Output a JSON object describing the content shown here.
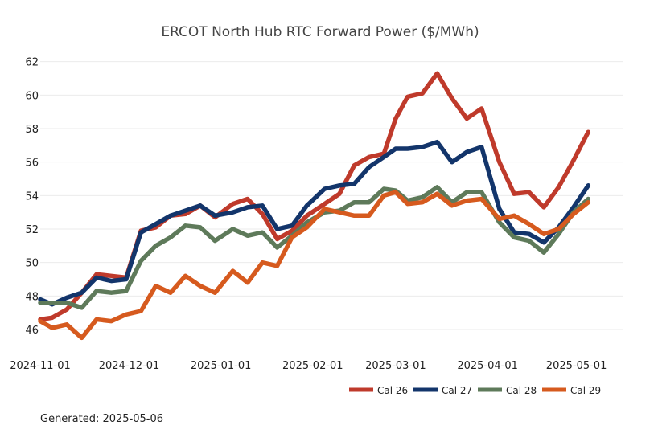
{
  "chart_data": {
    "type": "line",
    "title": "ERCOT North Hub RTC Forward Power ($/MWh)",
    "xlabel": "",
    "ylabel": "",
    "x_start": "2024-11-01",
    "x_end": "2025-05-06",
    "ylim": [
      44.8,
      62.8
    ],
    "y_ticks": [
      46,
      48,
      50,
      52,
      54,
      56,
      58,
      60,
      62
    ],
    "x_ticks": [
      "2024-11-01",
      "2024-12-01",
      "2025-01-01",
      "2025-02-01",
      "2025-03-01",
      "2025-04-01",
      "2025-05-01"
    ],
    "grid": true,
    "legend_position": "bottom-right",
    "dates": [
      "2024-11-01",
      "2024-11-05",
      "2024-11-10",
      "2024-11-15",
      "2024-11-20",
      "2024-11-25",
      "2024-11-30",
      "2024-12-05",
      "2024-12-10",
      "2024-12-15",
      "2024-12-20",
      "2024-12-25",
      "2024-12-30",
      "2025-01-05",
      "2025-01-10",
      "2025-01-15",
      "2025-01-20",
      "2025-01-25",
      "2025-01-30",
      "2025-02-05",
      "2025-02-10",
      "2025-02-15",
      "2025-02-20",
      "2025-02-25",
      "2025-03-01",
      "2025-03-05",
      "2025-03-10",
      "2025-03-15",
      "2025-03-20",
      "2025-03-25",
      "2025-03-30",
      "2025-04-05",
      "2025-04-10",
      "2025-04-15",
      "2025-04-20",
      "2025-04-25",
      "2025-04-30",
      "2025-05-05"
    ],
    "series": [
      {
        "name": "Cal 26",
        "color": "#bf3a2b",
        "values": [
          46.6,
          46.7,
          47.2,
          48.2,
          49.3,
          49.2,
          49.1,
          51.9,
          52.1,
          52.8,
          52.9,
          53.4,
          52.7,
          53.5,
          53.8,
          52.9,
          51.4,
          51.9,
          52.8,
          53.5,
          54.1,
          55.8,
          56.3,
          56.5,
          58.6,
          59.9,
          60.1,
          61.3,
          59.8,
          58.6,
          59.2,
          56.0,
          54.1,
          54.2,
          53.3,
          54.5,
          56.1,
          57.8
        ]
      },
      {
        "name": "Cal 27",
        "color": "#13356b",
        "values": [
          47.8,
          47.5,
          47.9,
          48.2,
          49.1,
          48.9,
          49.0,
          51.8,
          52.3,
          52.8,
          53.1,
          53.4,
          52.8,
          53.0,
          53.3,
          53.4,
          52.0,
          52.2,
          53.4,
          54.4,
          54.6,
          54.7,
          55.7,
          56.3,
          56.8,
          56.8,
          56.9,
          57.2,
          56.0,
          56.6,
          56.9,
          53.2,
          51.8,
          51.7,
          51.2,
          52.1,
          53.3,
          54.6
        ]
      },
      {
        "name": "Cal 28",
        "color": "#5e7a5a",
        "values": [
          47.6,
          47.6,
          47.6,
          47.3,
          48.3,
          48.2,
          48.3,
          50.1,
          51.0,
          51.5,
          52.2,
          52.1,
          51.3,
          52.0,
          51.6,
          51.8,
          50.9,
          51.6,
          52.4,
          53.0,
          53.1,
          53.6,
          53.6,
          54.4,
          54.3,
          53.7,
          53.9,
          54.5,
          53.6,
          54.2,
          54.2,
          52.4,
          51.5,
          51.3,
          50.6,
          51.7,
          53.0,
          53.8
        ]
      },
      {
        "name": "Cal 29",
        "color": "#d65a1e",
        "values": [
          46.5,
          46.1,
          46.3,
          45.5,
          46.6,
          46.5,
          46.9,
          47.1,
          48.6,
          48.2,
          49.2,
          48.6,
          48.2,
          49.5,
          48.8,
          50.0,
          49.8,
          51.5,
          52.1,
          53.2,
          53.0,
          52.8,
          52.8,
          54.0,
          54.2,
          53.5,
          53.6,
          54.1,
          53.4,
          53.7,
          53.8,
          52.6,
          52.8,
          52.3,
          51.7,
          52.0,
          52.9,
          53.6
        ]
      }
    ],
    "footer": "Generated: 2025-05-06"
  }
}
